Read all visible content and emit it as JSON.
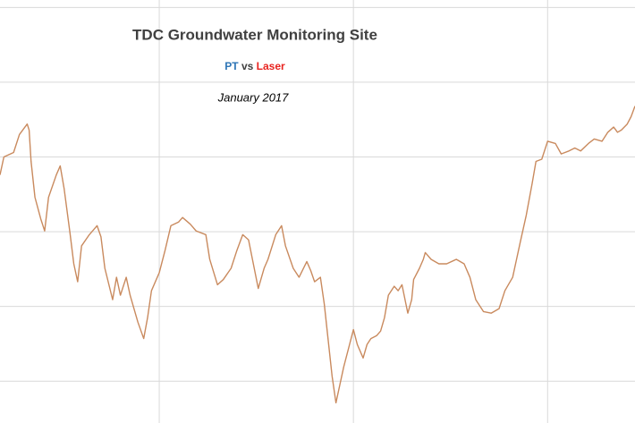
{
  "chart_data": {
    "type": "line",
    "title": "TDC Groundwater Monitoring Site",
    "subtitle_joiner": "vs",
    "date_label": "January 2017",
    "series": [
      {
        "name": "PT",
        "color": "#2e75b6"
      },
      {
        "name": "Laser",
        "color": "#e8231f"
      }
    ],
    "line_color": "#c98a5e",
    "x": [
      0.18,
      0.2,
      0.25,
      0.28,
      0.32,
      0.33,
      0.34,
      0.36,
      0.39,
      0.41,
      0.43,
      0.47,
      0.49,
      0.51,
      0.54,
      0.56,
      0.58,
      0.6,
      0.64,
      0.68,
      0.7,
      0.72,
      0.76,
      0.78,
      0.8,
      0.83,
      0.85,
      0.87,
      0.89,
      0.92,
      0.94,
      0.96,
      1.0,
      1.03,
      1.06,
      1.1,
      1.12,
      1.16,
      1.19,
      1.24,
      1.26,
      1.3,
      1.33,
      1.37,
      1.4,
      1.43,
      1.46,
      1.48,
      1.51,
      1.54,
      1.56,
      1.6,
      1.63,
      1.65,
      1.69,
      1.72,
      1.76,
      1.78,
      1.8,
      1.83,
      1.85,
      1.87,
      1.89,
      1.91,
      1.93,
      1.95,
      1.98,
      2.0,
      2.02,
      2.05,
      2.07,
      2.09,
      2.12,
      2.14,
      2.16,
      2.18,
      2.21,
      2.23,
      2.25,
      2.28,
      2.3,
      2.31,
      2.34,
      2.36,
      2.37,
      2.4,
      2.44,
      2.48,
      2.53,
      2.57,
      2.6,
      2.63,
      2.67,
      2.71,
      2.75,
      2.78,
      2.82,
      2.84,
      2.86,
      2.89,
      2.92,
      2.94,
      2.97,
      3.0,
      3.04,
      3.07,
      3.11,
      3.14,
      3.17,
      3.21,
      3.24,
      3.28,
      3.31,
      3.34,
      3.36,
      3.38,
      3.41,
      3.43,
      3.45
    ],
    "values": [
      2.76,
      3.0,
      3.06,
      3.3,
      3.44,
      3.36,
      2.94,
      2.46,
      2.17,
      2.01,
      2.46,
      2.76,
      2.88,
      2.58,
      1.99,
      1.57,
      1.33,
      1.81,
      1.96,
      2.08,
      1.93,
      1.51,
      1.09,
      1.39,
      1.15,
      1.39,
      1.15,
      0.97,
      0.79,
      0.57,
      0.85,
      1.21,
      1.45,
      1.75,
      2.08,
      2.13,
      2.19,
      2.1,
      2.01,
      1.96,
      1.63,
      1.29,
      1.36,
      1.51,
      1.75,
      1.96,
      1.89,
      1.63,
      1.24,
      1.51,
      1.63,
      1.96,
      2.08,
      1.81,
      1.51,
      1.39,
      1.6,
      1.48,
      1.33,
      1.39,
      1.03,
      0.55,
      0.07,
      -0.29,
      -0.05,
      0.19,
      0.49,
      0.69,
      0.49,
      0.31,
      0.49,
      0.57,
      0.61,
      0.67,
      0.85,
      1.15,
      1.27,
      1.21,
      1.29,
      0.91,
      1.09,
      1.36,
      1.51,
      1.63,
      1.72,
      1.63,
      1.57,
      1.57,
      1.63,
      1.57,
      1.39,
      1.09,
      0.93,
      0.91,
      0.97,
      1.21,
      1.39,
      1.63,
      1.87,
      2.22,
      2.64,
      2.94,
      2.97,
      3.21,
      3.18,
      3.04,
      3.08,
      3.12,
      3.08,
      3.18,
      3.24,
      3.21,
      3.33,
      3.4,
      3.33,
      3.36,
      3.44,
      3.54,
      3.68
    ],
    "xlim": [
      0.18,
      3.45
    ],
    "ylim": [
      -0.56,
      5.1
    ],
    "xgrid": [
      1,
      2,
      3
    ],
    "ygrid": [
      0,
      1,
      2,
      3,
      4,
      5
    ],
    "grid": true
  }
}
